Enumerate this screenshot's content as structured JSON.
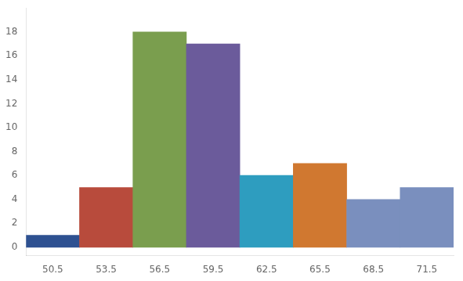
{
  "chart_data": {
    "type": "bar",
    "categories": [
      "50.5",
      "53.5",
      "56.5",
      "59.5",
      "62.5",
      "65.5",
      "68.5",
      "71.5"
    ],
    "values": [
      1,
      5,
      18,
      17,
      6,
      7,
      4,
      5
    ],
    "colors": [
      "#2E5191",
      "#B84B3C",
      "#7A9E4E",
      "#6B5B9B",
      "#2E9DBF",
      "#D07830",
      "#7A8FBE",
      "#7A8FBE"
    ],
    "ylim": [
      -0.7,
      20
    ],
    "yticks": [
      0,
      2,
      4,
      6,
      8,
      10,
      12,
      14,
      16,
      18
    ],
    "grid": false
  }
}
